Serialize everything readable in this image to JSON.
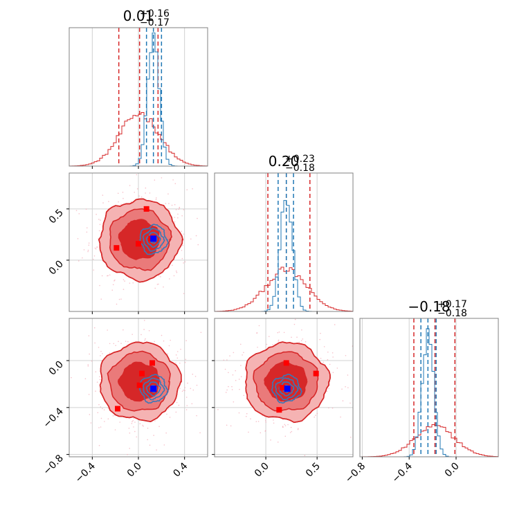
{
  "chart_data": {
    "type": "corner",
    "titles": [
      {
        "value": "0.01",
        "upper": "+0.16",
        "lower": "−0.17"
      },
      {
        "value": "0.20",
        "upper": "+0.23",
        "lower": "−0.18"
      },
      {
        "value": "−0.18",
        "upper": "+0.17",
        "lower": "−0.18"
      }
    ],
    "axes": {
      "p0": {
        "range": [
          -0.6,
          0.6
        ],
        "ticks": [
          -0.4,
          0.0,
          0.4
        ],
        "tick_labels": [
          "−0.4",
          "0.0",
          "0.4"
        ]
      },
      "p1": {
        "range": [
          -0.5,
          0.85
        ],
        "ticks": [
          0.0,
          0.5
        ],
        "tick_labels": [
          "0.0",
          "0.5"
        ]
      },
      "p2": {
        "range": [
          -0.82,
          0.36
        ],
        "ticks": [
          -0.8,
          -0.4,
          0.0
        ],
        "tick_labels": [
          "−0.8",
          "−0.4",
          "0.0"
        ]
      }
    },
    "grid": true,
    "colors": {
      "red": "#d62728",
      "blue": "#1f77b4",
      "red_fill_light": "#f5b3b3",
      "red_fill_mid": "#ea7a7a",
      "red_scatter": "#f4a6b4",
      "blue_marker": "#0000ff",
      "red_marker": "#ff0000"
    },
    "series": [
      {
        "name": "",
        "color": "red",
        "quantiles": {
          "p0": [
            -0.17,
            0.01,
            0.17
          ],
          "p1": [
            0.02,
            0.2,
            0.43
          ],
          "p2": [
            -0.36,
            -0.18,
            -0.01
          ]
        },
        "center": {
          "p0": 0.01,
          "p1": 0.2,
          "p2": -0.18
        },
        "spread": {
          "p0": 0.17,
          "p1": 0.2,
          "p2": 0.17
        },
        "corr": {
          "p0p1": 0.0,
          "p0p2": 0.1,
          "p1p2": 0.1
        }
      },
      {
        "name": "",
        "color": "blue",
        "quantiles": {
          "p0": [
            0.07,
            0.13,
            0.2
          ],
          "p1": [
            0.12,
            0.2,
            0.27
          ],
          "p2": [
            -0.3,
            -0.24,
            -0.17
          ]
        },
        "center": {
          "p0": 0.13,
          "p1": 0.2,
          "p2": -0.24
        },
        "spread": {
          "p0": 0.05,
          "p1": 0.06,
          "p2": 0.05
        },
        "corr": {
          "p0p1": 0.0,
          "p0p2": 0.0,
          "p1p2": 0.0
        }
      }
    ],
    "markers": {
      "blue_square": {
        "p0": 0.13,
        "p1": 0.21,
        "p2": -0.24
      },
      "red_squares": {
        "p0p1": [
          [
            -0.19,
            0.12
          ],
          [
            0.0,
            0.16
          ],
          [
            0.07,
            0.5
          ],
          [
            0.11,
            0.21
          ]
        ],
        "p0p2": [
          [
            -0.18,
            -0.41
          ],
          [
            0.03,
            -0.11
          ],
          [
            0.12,
            -0.02
          ],
          [
            0.01,
            -0.21
          ]
        ],
        "p1p2": [
          [
            0.13,
            -0.42
          ],
          [
            0.2,
            -0.02
          ],
          [
            0.49,
            -0.11
          ],
          [
            0.16,
            -0.23
          ]
        ]
      }
    }
  }
}
